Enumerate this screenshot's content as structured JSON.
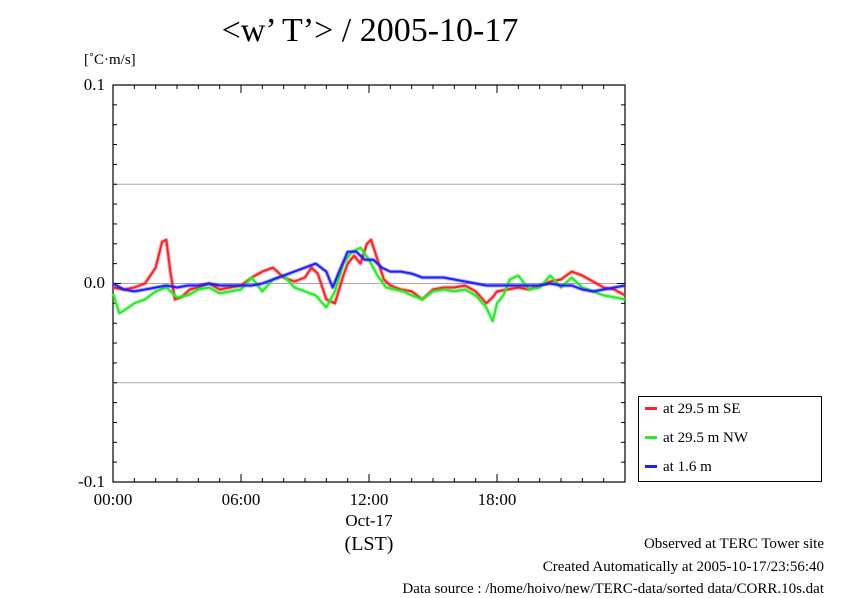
{
  "chart_data": {
    "type": "line",
    "title": "<w’ T’> / 2005-10-17",
    "ylabel": "[˚C·m/s]",
    "xlabel": "(LST)",
    "x_date_label": "Oct-17",
    "xlim_hours": [
      0,
      24
    ],
    "ylim": [
      -0.1,
      0.1
    ],
    "y_ticks": [
      "0.1",
      "0.0",
      "-0.1"
    ],
    "y_tick_values": [
      0.1,
      0.0,
      -0.1
    ],
    "y_gridlines": [
      0.05,
      0.0,
      -0.05
    ],
    "x_ticks": [
      "00:00",
      "06:00",
      "12:00",
      "18:00"
    ],
    "x_tick_hours": [
      0,
      6,
      12,
      18
    ],
    "grid": true,
    "legend_position": "right-bottom",
    "series": [
      {
        "name": "at 29.5 m SE",
        "color": "#ff2020",
        "x": [
          0,
          0.5,
          1,
          1.5,
          2,
          2.3,
          2.5,
          2.7,
          2.9,
          3.2,
          3.6,
          4,
          4.5,
          5,
          5.5,
          6,
          6.5,
          7,
          7.5,
          8,
          8.5,
          9,
          9.3,
          9.6,
          10,
          10.4,
          10.8,
          11,
          11.3,
          11.6,
          11.9,
          12.1,
          12.4,
          12.7,
          13,
          13.5,
          14,
          14.5,
          15,
          15.5,
          16,
          16.5,
          17,
          17.5,
          17.8,
          18,
          18.5,
          19,
          19.5,
          20,
          20.5,
          21,
          21.5,
          22,
          22.5,
          23,
          23.5,
          24
        ],
        "values": [
          -0.002,
          -0.003,
          -0.002,
          0.0,
          0.008,
          0.021,
          0.022,
          0.005,
          -0.008,
          -0.007,
          -0.003,
          -0.002,
          0.0,
          -0.003,
          -0.002,
          -0.001,
          0.003,
          0.006,
          0.008,
          0.003,
          0.001,
          0.003,
          0.008,
          0.005,
          -0.008,
          -0.01,
          0.004,
          0.01,
          0.014,
          0.01,
          0.02,
          0.022,
          0.012,
          0.002,
          -0.001,
          -0.003,
          -0.004,
          -0.008,
          -0.003,
          -0.002,
          -0.002,
          -0.001,
          -0.004,
          -0.01,
          -0.007,
          -0.004,
          -0.003,
          -0.002,
          -0.003,
          -0.001,
          0.001,
          0.002,
          0.006,
          0.004,
          0.001,
          -0.002,
          -0.003,
          -0.006
        ]
      },
      {
        "name": "at 29.5 m NW",
        "color": "#22ee22",
        "x": [
          0,
          0.3,
          0.6,
          1,
          1.5,
          2,
          2.5,
          3,
          3.5,
          4,
          4.5,
          5,
          5.5,
          6,
          6.5,
          7,
          7.5,
          8,
          8.5,
          9,
          9.5,
          10,
          10.4,
          10.8,
          11.2,
          11.6,
          12,
          12.4,
          12.8,
          13.2,
          13.6,
          14,
          14.5,
          15,
          15.5,
          16,
          16.5,
          17,
          17.5,
          17.8,
          18,
          18.3,
          18.6,
          19,
          19.5,
          20,
          20.5,
          21,
          21.5,
          22,
          22.5,
          23,
          23.5,
          24
        ],
        "values": [
          -0.005,
          -0.015,
          -0.013,
          -0.01,
          -0.008,
          -0.004,
          -0.002,
          -0.007,
          -0.006,
          -0.003,
          -0.002,
          -0.005,
          -0.004,
          -0.003,
          0.003,
          -0.004,
          0.002,
          0.004,
          -0.002,
          -0.004,
          -0.006,
          -0.012,
          -0.004,
          0.01,
          0.016,
          0.018,
          0.012,
          0.004,
          -0.002,
          -0.003,
          -0.004,
          -0.006,
          -0.008,
          -0.004,
          -0.003,
          -0.004,
          -0.003,
          -0.006,
          -0.012,
          -0.019,
          -0.01,
          -0.006,
          0.002,
          0.004,
          -0.003,
          -0.002,
          0.004,
          -0.002,
          0.003,
          -0.002,
          -0.004,
          -0.006,
          -0.007,
          -0.008
        ]
      },
      {
        "name": "at 1.6 m",
        "color": "#2020ff",
        "x": [
          0,
          0.5,
          1,
          1.5,
          2,
          2.5,
          3,
          3.5,
          4,
          4.5,
          5,
          5.5,
          6,
          6.5,
          7,
          7.5,
          8,
          8.5,
          9,
          9.5,
          10,
          10.3,
          10.6,
          11,
          11.4,
          11.8,
          12.2,
          12.6,
          13,
          13.5,
          14,
          14.5,
          15,
          15.5,
          16,
          16.5,
          17,
          17.5,
          18,
          18.5,
          19,
          19.5,
          20,
          20.5,
          21,
          21.5,
          22,
          22.5,
          23,
          23.5,
          24
        ],
        "values": [
          0.0,
          -0.003,
          -0.004,
          -0.003,
          -0.002,
          -0.001,
          -0.002,
          -0.001,
          -0.001,
          0.0,
          -0.001,
          -0.001,
          -0.001,
          -0.001,
          0.0,
          0.002,
          0.004,
          0.006,
          0.008,
          0.01,
          0.006,
          -0.002,
          0.006,
          0.016,
          0.016,
          0.012,
          0.012,
          0.008,
          0.006,
          0.006,
          0.005,
          0.003,
          0.003,
          0.003,
          0.002,
          0.001,
          0.0,
          -0.001,
          -0.001,
          -0.001,
          -0.001,
          -0.001,
          -0.001,
          0.0,
          -0.001,
          -0.001,
          -0.003,
          -0.004,
          -0.003,
          -0.002,
          -0.001
        ]
      }
    ]
  },
  "footer": {
    "line1": "Observed at TERC Tower site",
    "line2": "Created Automatically at 2005-10-17/23:56:40",
    "line3": "Data source : /home/hoivo/new/TERC-data/sorted data/CORR.10s.dat"
  }
}
